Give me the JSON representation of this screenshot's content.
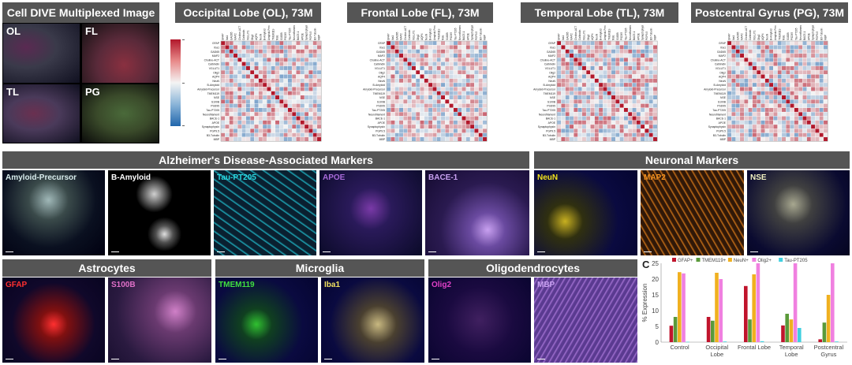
{
  "tissue": {
    "title": "Cell DIVE Multiplexed Image",
    "labels": [
      "OL",
      "FL",
      "TL",
      "PG"
    ]
  },
  "matrices": [
    {
      "title": "Occipital Lobe (OL), 73M"
    },
    {
      "title": "Frontal Lobe (FL), 73M"
    },
    {
      "title": "Temporal Lobe (TL), 73M"
    },
    {
      "title": "Postcentral Gyrus (PG), 73M"
    }
  ],
  "markers": [
    "GFAP",
    "Iba1",
    "GAD65",
    "MAP2",
    "Choline-ACT",
    "Calbindin",
    "VGLUT1",
    "Olig2",
    "AQP4",
    "NeuN",
    "B-Amyloid",
    "Amyloid-Precursor",
    "TMEM119",
    "NSE",
    "S100B",
    "PSD95",
    "Tau-PT205",
    "Neurofilament",
    "BACE-1",
    "APOE",
    "Synaptophysin",
    "PGP9.5",
    "B3-Tubulin",
    "MBP"
  ],
  "colorbar": {
    "colors": [
      "#b2182b",
      "#f4f4f4",
      "#2166ac"
    ],
    "top_label": "",
    "bottom_label": ""
  },
  "sections": {
    "ad": "Alzheimer's Disease-Associated Markers",
    "neuronal": "Neuronal Markers",
    "astro": "Astrocytes",
    "micro": "Microglia",
    "oligo": "Oligodendrocytes"
  },
  "panels": [
    {
      "label": "Amyloid-Precursor",
      "color": "#d8ecec"
    },
    {
      "label": "B-Amyloid",
      "color": "#ffffff"
    },
    {
      "label": "Tau-PT205",
      "color": "#2ad8e0"
    },
    {
      "label": "APOE",
      "color": "#a86ad8"
    },
    {
      "label": "BACE-1",
      "color": "#c8a0f0"
    },
    {
      "label": "NeuN",
      "color": "#f2e21e"
    },
    {
      "label": "MAP2",
      "color": "#f09020"
    },
    {
      "label": "NSE",
      "color": "#f0f0c0"
    },
    {
      "label": "GFAP",
      "color": "#ff3030"
    },
    {
      "label": "S100B",
      "color": "#e070c8"
    },
    {
      "label": "TMEM119",
      "color": "#40e040"
    },
    {
      "label": "Iba1",
      "color": "#f0e060"
    },
    {
      "label": "Olig2",
      "color": "#e040c8"
    },
    {
      "label": "MBP",
      "color": "#c8a0f0"
    }
  ],
  "chart_data": {
    "type": "bar",
    "panel_letter": "C",
    "ylabel": "% Expression",
    "ylim": [
      0,
      25
    ],
    "yticks": [
      0,
      5,
      10,
      15,
      20,
      25
    ],
    "categories": [
      "Control",
      "Occipital\nLobe",
      "Frontal Lobe",
      "Temporal\nLobe",
      "Postcentral\nGyrus"
    ],
    "series": [
      {
        "name": "GFAP+",
        "color": "#c0142c",
        "values": [
          5.2,
          8.0,
          17.8,
          5.3,
          0.9
        ]
      },
      {
        "name": "TMEM119+",
        "color": "#5a9a3a",
        "values": [
          8.0,
          6.8,
          7.2,
          9.0,
          6.2
        ]
      },
      {
        "name": "NeuN+",
        "color": "#f0b020",
        "values": [
          22.2,
          22.0,
          21.5,
          7.2,
          15.0
        ]
      },
      {
        "name": "Olig2+",
        "color": "#f080e0",
        "values": [
          21.8,
          20.0,
          25.0,
          25.0,
          25.0
        ]
      },
      {
        "name": "Tau-PT205",
        "color": "#40d0e0",
        "values": [
          0.1,
          0.2,
          0.3,
          4.5,
          0.2
        ]
      }
    ]
  }
}
